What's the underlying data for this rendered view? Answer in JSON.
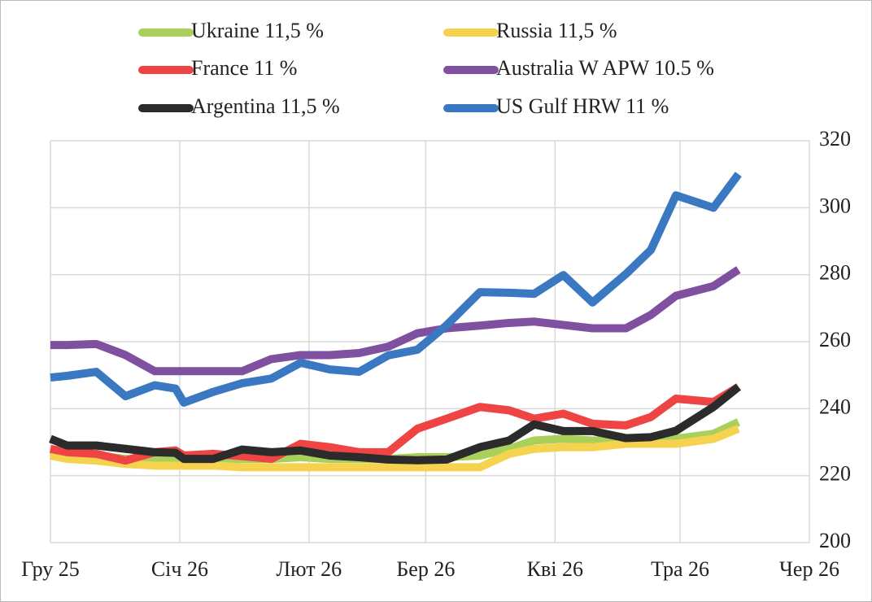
{
  "chart_data": {
    "type": "line",
    "x": [
      0,
      4,
      11,
      18,
      25,
      30,
      32,
      39,
      46,
      53,
      60,
      67,
      74,
      81,
      88,
      95,
      103,
      110,
      116,
      123,
      130,
      138,
      144,
      150,
      159,
      165
    ],
    "xlim": [
      0,
      182
    ],
    "xticks": [
      {
        "value": 0,
        "label": "Гру 25"
      },
      {
        "value": 31,
        "label": "Січ 26"
      },
      {
        "value": 62,
        "label": "Лют 26"
      },
      {
        "value": 90,
        "label": "Бер 26"
      },
      {
        "value": 121,
        "label": "Кві 26"
      },
      {
        "value": 151,
        "label": "Тра 26"
      },
      {
        "value": 182,
        "label": "Чер 26"
      }
    ],
    "ylim": [
      200,
      320
    ],
    "yticks": [
      200,
      220,
      240,
      260,
      280,
      300,
      320
    ],
    "grid": true,
    "legend": "top",
    "series": [
      {
        "name": "Ukraine 11,5 %",
        "color": "#a9d05a",
        "values": [
          227,
          226.5,
          226,
          225,
          225,
          225,
          225,
          225,
          225,
          225,
          225.5,
          225,
          225,
          225,
          225.5,
          225.5,
          226,
          228,
          230.5,
          231,
          230.5,
          230.5,
          231,
          231,
          232.5,
          236
        ]
      },
      {
        "name": "Russia 11,5 %",
        "color": "#f5d34e",
        "values": [
          226,
          225,
          224.5,
          223.5,
          223,
          223,
          223,
          223,
          222.5,
          222.5,
          222.5,
          222.5,
          222.5,
          222.5,
          222.5,
          222.5,
          222.5,
          226.5,
          228,
          228.5,
          228.5,
          229.5,
          229.5,
          229.5,
          231,
          234
        ]
      },
      {
        "name": "France 11 %",
        "color": "#ef4444",
        "values": [
          228,
          227,
          226.5,
          224.5,
          227,
          227.5,
          226,
          226.5,
          225.8,
          225,
          229.5,
          228.5,
          227,
          227,
          234,
          237,
          240.5,
          239.5,
          237,
          238.5,
          235.5,
          235,
          237.5,
          243,
          242,
          246.5
        ]
      },
      {
        "name": "Australia W APW 10.5 %",
        "color": "#8050a0",
        "values": [
          259,
          259,
          259.3,
          256,
          251.2,
          251.2,
          251.2,
          251.2,
          251.2,
          254.8,
          256,
          256,
          256.6,
          258.5,
          262.5,
          264,
          264.8,
          265.6,
          266,
          265,
          264,
          264,
          268,
          273.7,
          276.6,
          281.5
        ]
      },
      {
        "name": "Argentina 11,5 %",
        "color": "#2b2b2b",
        "values": [
          231,
          229,
          229,
          228,
          227,
          226.8,
          225,
          225,
          227.8,
          227,
          227.5,
          226,
          225.5,
          224.8,
          224.6,
          224.8,
          228.5,
          230.5,
          235.3,
          233.3,
          233.3,
          231.2,
          231.5,
          233.4,
          240.5,
          246.5
        ]
      },
      {
        "name": "US Gulf HRW 11 %",
        "color": "#3a78c2",
        "values": [
          249.3,
          249.8,
          251,
          243.7,
          247,
          246,
          241.8,
          245,
          247.6,
          249,
          253.7,
          251.7,
          251,
          255.9,
          257.6,
          264.9,
          274.8,
          274.6,
          274.3,
          279.9,
          271.7,
          280.2,
          287.4,
          303.7,
          300,
          310
        ]
      }
    ]
  }
}
